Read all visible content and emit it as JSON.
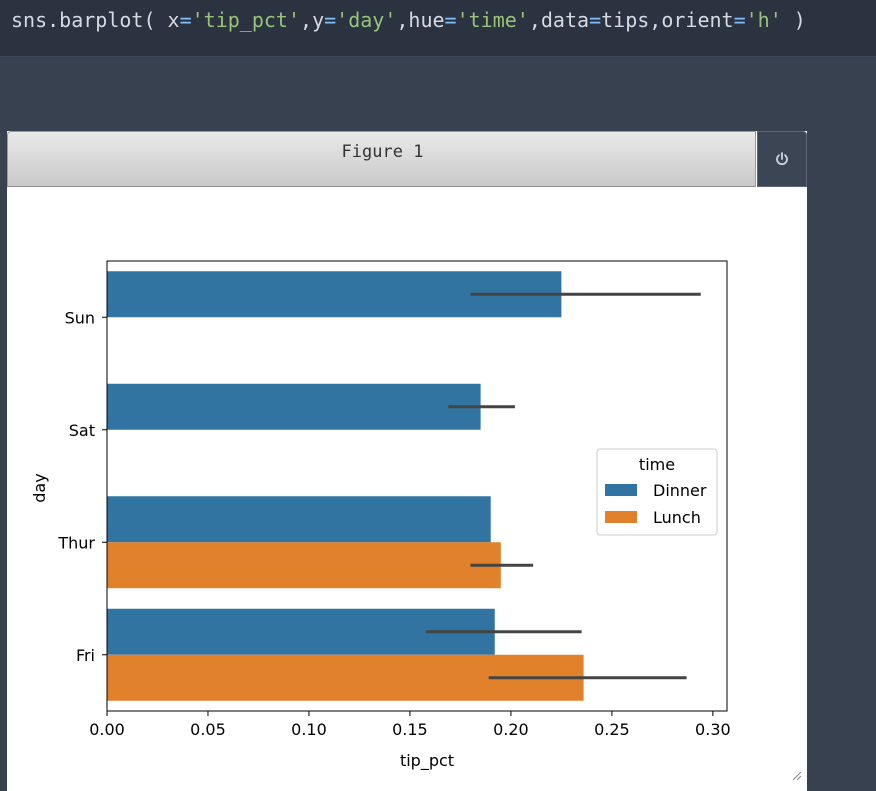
{
  "code": {
    "fn": "sns.barplot(",
    "k1": " x",
    "eq1": "=",
    "v1": "'tip_pct'",
    "c1": ",",
    "k2": "y",
    "eq2": "=",
    "v2": "'day'",
    "c2": ",",
    "k3": "hue",
    "eq3": "=",
    "v3": "'time'",
    "c3": ",",
    "k4": "data",
    "eq4": "=",
    "v4": "tips",
    "c4": ",",
    "k5": "orient",
    "eq5": "=",
    "v5": "'h'",
    "close": " )"
  },
  "figure": {
    "title": "Figure 1",
    "power_icon": "power-icon"
  },
  "colors": {
    "dinner": "#3274a1",
    "lunch": "#e1812c",
    "errbar": "#444444"
  },
  "chart_data": {
    "type": "bar",
    "orientation": "horizontal",
    "categories": [
      "Sun",
      "Sat",
      "Thur",
      "Fri"
    ],
    "series": [
      {
        "name": "Dinner",
        "values": [
          0.225,
          0.185,
          0.19,
          0.192
        ],
        "ci": [
          [
            0.18,
            0.294
          ],
          [
            0.169,
            0.202
          ],
          null,
          [
            0.158,
            0.235
          ]
        ]
      },
      {
        "name": "Lunch",
        "values": [
          null,
          null,
          0.195,
          0.236
        ],
        "ci": [
          null,
          null,
          [
            0.18,
            0.211
          ],
          [
            0.189,
            0.287
          ]
        ]
      }
    ],
    "xlabel": "tip_pct",
    "ylabel": "day",
    "xlim": [
      0,
      0.307
    ],
    "xticks": [
      "0.00",
      "0.05",
      "0.10",
      "0.15",
      "0.20",
      "0.25",
      "0.30"
    ],
    "legend": {
      "title": "time",
      "entries": [
        "Dinner",
        "Lunch"
      ],
      "placement": "center-right"
    },
    "grid": false
  }
}
